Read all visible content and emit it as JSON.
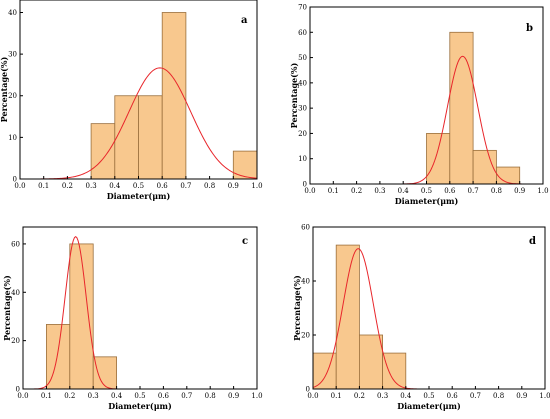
{
  "chart_data": [
    {
      "type": "bar",
      "panel_label": "a",
      "xlabel": "Diameter(μm)",
      "ylabel": "Percentage(%)",
      "xlim": [
        0,
        1.0
      ],
      "ylim": [
        0,
        43
      ],
      "xticks": [
        "0.0",
        "0.1",
        "0.2",
        "0.3",
        "0.4",
        "0.5",
        "0.6",
        "0.7",
        "0.8",
        "0.9",
        "1.0"
      ],
      "yticks": [
        "0",
        "10",
        "20",
        "30",
        "40"
      ],
      "bins": [
        [
          0.3,
          0.4,
          13.3
        ],
        [
          0.4,
          0.5,
          20
        ],
        [
          0.5,
          0.6,
          20
        ],
        [
          0.6,
          0.7,
          40
        ],
        [
          0.9,
          1.0,
          6.7
        ]
      ],
      "fit": {
        "type": "gaussian",
        "mean": 0.59,
        "sd": 0.13,
        "peak": 26.7
      },
      "colors": {
        "bar": "#f8c88e",
        "curve": "#e8262b"
      }
    },
    {
      "type": "bar",
      "panel_label": "b",
      "xlabel": "Diameter(μm)",
      "ylabel": "Percentage(%)",
      "xlim": [
        0,
        1.0
      ],
      "ylim": [
        0,
        70
      ],
      "xticks": [
        "0.0",
        "0.1",
        "0.2",
        "0.3",
        "0.4",
        "0.5",
        "0.6",
        "0.7",
        "0.8",
        "0.9",
        "1.0"
      ],
      "yticks": [
        "0",
        "10",
        "20",
        "30",
        "40",
        "50",
        "60",
        "70"
      ],
      "bins": [
        [
          0.5,
          0.6,
          20
        ],
        [
          0.6,
          0.7,
          60
        ],
        [
          0.7,
          0.8,
          13.3
        ],
        [
          0.8,
          0.9,
          6.7
        ]
      ],
      "fit": {
        "type": "gaussian",
        "mean": 0.655,
        "sd": 0.065,
        "peak": 50.5
      },
      "colors": {
        "bar": "#f8c88e",
        "curve": "#e8262b"
      }
    },
    {
      "type": "bar",
      "panel_label": "c",
      "xlabel": "Diameter(μm)",
      "ylabel": "Percentage(%)",
      "xlim": [
        0,
        1.0
      ],
      "ylim": [
        0,
        67
      ],
      "xticks": [
        "0.0",
        "0.1",
        "0.2",
        "0.3",
        "0.4",
        "0.5",
        "0.6",
        "0.7",
        "0.8",
        "0.9",
        "1.0"
      ],
      "yticks": [
        "0",
        "20",
        "40",
        "60"
      ],
      "bins": [
        [
          0.1,
          0.2,
          26.7
        ],
        [
          0.2,
          0.3,
          60
        ],
        [
          0.3,
          0.4,
          13.3
        ]
      ],
      "fit": {
        "type": "gaussian",
        "mean": 0.225,
        "sd": 0.045,
        "peak": 63
      },
      "colors": {
        "bar": "#f8c88e",
        "curve": "#e8262b"
      }
    },
    {
      "type": "bar",
      "panel_label": "d",
      "xlabel": "Diameter(μm)",
      "ylabel": "Percentage(%)",
      "xlim": [
        0,
        1.0
      ],
      "ylim": [
        0,
        60
      ],
      "xticks": [
        "0.0",
        "0.1",
        "0.2",
        "0.3",
        "0.4",
        "0.5",
        "0.6",
        "0.7",
        "0.8",
        "0.9",
        "1.0"
      ],
      "yticks": [
        "0",
        "20",
        "40",
        "60"
      ],
      "bins": [
        [
          0.0,
          0.1,
          13.3
        ],
        [
          0.1,
          0.2,
          53.3
        ],
        [
          0.2,
          0.3,
          20
        ],
        [
          0.3,
          0.4,
          13.3
        ]
      ],
      "fit": {
        "type": "gaussian",
        "mean": 0.195,
        "sd": 0.065,
        "peak": 52
      },
      "colors": {
        "bar": "#f8c88e",
        "curve": "#e8262b"
      }
    }
  ]
}
